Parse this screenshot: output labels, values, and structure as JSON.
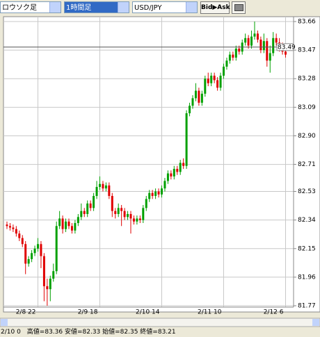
{
  "toolbar": {
    "chart_style": "ロウソク足",
    "timeframe": "1時間足",
    "pair": "USD/JPY",
    "button": "Bid▶Ask"
  },
  "status": "2/10 0　高値=83.36 安値=82.33 始値=82.35 終値=83.21",
  "chart_data": {
    "type": "candlestick",
    "categories": [
      null,
      null,
      null,
      null,
      null,
      null,
      null,
      null,
      null,
      null,
      "2/8 22",
      null,
      null,
      null,
      null,
      null,
      null,
      null,
      null,
      null,
      null,
      null,
      null,
      null,
      null,
      null,
      null,
      null,
      null,
      null,
      "2/9 18",
      null,
      null,
      null,
      null,
      null,
      null,
      null,
      null,
      null,
      null,
      null,
      null,
      null,
      null,
      null,
      null,
      null,
      null,
      null,
      "2/10 14",
      null,
      null,
      null,
      null,
      null,
      null,
      null,
      null,
      null,
      null,
      null,
      null,
      null,
      null,
      null,
      null,
      null,
      null,
      null,
      "2/11 10",
      null,
      null,
      null,
      null,
      null,
      null,
      null,
      null,
      null,
      null,
      null,
      null,
      null,
      null,
      null,
      null,
      null,
      null,
      null,
      "2/12 6"
    ],
    "open": [
      82.31,
      82.3,
      82.29,
      82.28,
      82.25,
      82.22,
      82.18,
      82.05,
      82.08,
      82.12,
      82.15,
      82.18,
      82.1,
      81.9,
      81.88,
      81.95,
      82.0,
      82.3,
      82.35,
      82.28,
      82.33,
      82.3,
      82.27,
      82.32,
      82.36,
      82.4,
      82.38,
      82.45,
      82.42,
      82.5,
      82.56,
      82.58,
      82.55,
      82.57,
      82.5,
      82.4,
      82.38,
      82.42,
      82.4,
      82.36,
      82.38,
      82.35,
      82.33,
      82.35,
      82.34,
      82.42,
      82.48,
      82.52,
      82.5,
      82.53,
      82.51,
      82.55,
      82.6,
      82.65,
      82.63,
      82.68,
      82.66,
      82.72,
      82.7,
      83.05,
      83.1,
      83.15,
      83.2,
      83.12,
      83.18,
      83.28,
      83.25,
      83.3,
      83.27,
      83.22,
      83.3,
      83.36,
      83.4,
      83.44,
      83.42,
      83.48,
      83.46,
      83.52,
      83.55,
      83.5,
      83.56,
      83.58,
      83.54,
      83.47,
      83.53,
      83.4,
      83.45,
      83.55,
      83.52,
      83.48,
      83.46
    ],
    "high": [
      82.33,
      82.32,
      82.31,
      82.3,
      82.27,
      82.24,
      82.2,
      82.1,
      82.14,
      82.17,
      82.22,
      82.2,
      82.12,
      81.95,
      81.97,
      82.05,
      82.33,
      82.4,
      82.37,
      82.35,
      82.35,
      82.32,
      82.34,
      82.38,
      82.45,
      82.42,
      82.47,
      82.47,
      82.52,
      82.6,
      82.63,
      82.6,
      82.59,
      82.59,
      82.52,
      82.42,
      82.45,
      82.44,
      82.42,
      82.4,
      82.4,
      82.37,
      82.37,
      82.37,
      82.44,
      82.5,
      82.54,
      82.54,
      82.55,
      82.55,
      82.57,
      82.62,
      82.67,
      82.67,
      82.7,
      82.7,
      82.74,
      82.75,
      83.07,
      83.12,
      83.17,
      83.25,
      83.22,
      83.2,
      83.3,
      83.32,
      83.32,
      83.32,
      83.29,
      83.32,
      83.38,
      83.42,
      83.46,
      83.46,
      83.5,
      83.5,
      83.54,
      83.58,
      83.57,
      83.6,
      83.66,
      83.6,
      83.56,
      83.58,
      83.55,
      83.5,
      83.59,
      83.58,
      83.55,
      83.52,
      83.48
    ],
    "low": [
      82.28,
      82.27,
      82.26,
      82.23,
      82.2,
      82.16,
      81.98,
      82.03,
      82.06,
      82.1,
      82.13,
      82.02,
      81.8,
      81.77,
      81.8,
      81.93,
      81.98,
      82.28,
      82.25,
      82.26,
      82.28,
      82.25,
      82.25,
      82.3,
      82.34,
      82.36,
      82.36,
      82.4,
      82.4,
      82.48,
      82.54,
      82.53,
      82.53,
      82.48,
      82.36,
      82.35,
      82.36,
      82.3,
      82.34,
      82.34,
      82.25,
      82.31,
      82.31,
      82.32,
      82.32,
      82.4,
      82.46,
      82.48,
      82.48,
      82.49,
      82.49,
      82.53,
      82.58,
      82.61,
      82.61,
      82.64,
      82.64,
      82.68,
      82.68,
      83.03,
      83.08,
      83.13,
      83.1,
      83.1,
      83.16,
      83.23,
      83.23,
      83.25,
      83.2,
      83.2,
      83.28,
      83.34,
      83.38,
      83.4,
      83.4,
      83.44,
      83.44,
      83.5,
      83.48,
      83.48,
      83.54,
      83.52,
      83.45,
      83.45,
      83.36,
      83.32,
      83.43,
      83.5,
      83.46,
      83.44,
      83.42
    ],
    "close": [
      82.3,
      82.29,
      82.28,
      82.25,
      82.22,
      82.18,
      82.05,
      82.08,
      82.12,
      82.15,
      82.18,
      82.1,
      81.9,
      81.88,
      81.95,
      82.0,
      82.3,
      82.35,
      82.28,
      82.33,
      82.3,
      82.27,
      82.32,
      82.36,
      82.4,
      82.38,
      82.45,
      82.42,
      82.5,
      82.56,
      82.58,
      82.55,
      82.57,
      82.5,
      82.4,
      82.38,
      82.42,
      82.4,
      82.36,
      82.38,
      82.35,
      82.33,
      82.35,
      82.34,
      82.42,
      82.48,
      82.52,
      82.5,
      82.53,
      82.51,
      82.55,
      82.6,
      82.65,
      82.63,
      82.68,
      82.66,
      82.72,
      82.7,
      83.05,
      83.1,
      83.15,
      83.2,
      83.12,
      83.18,
      83.28,
      83.25,
      83.3,
      83.27,
      83.22,
      83.3,
      83.36,
      83.4,
      83.44,
      83.42,
      83.48,
      83.46,
      83.52,
      83.55,
      83.5,
      83.56,
      83.58,
      83.54,
      83.47,
      83.53,
      83.4,
      83.45,
      83.55,
      83.52,
      83.48,
      83.46,
      83.44
    ],
    "up_color": "#00a000",
    "down_color": "#e00000",
    "ylim": [
      81.77,
      83.66
    ],
    "yticks": [
      81.77,
      81.96,
      82.15,
      82.34,
      82.53,
      82.71,
      {
        "value": 82.9,
        "label": "82.90"
      },
      83.09,
      83.28,
      83.47,
      83.66
    ],
    "grid": true,
    "current_price": 83.49
  }
}
